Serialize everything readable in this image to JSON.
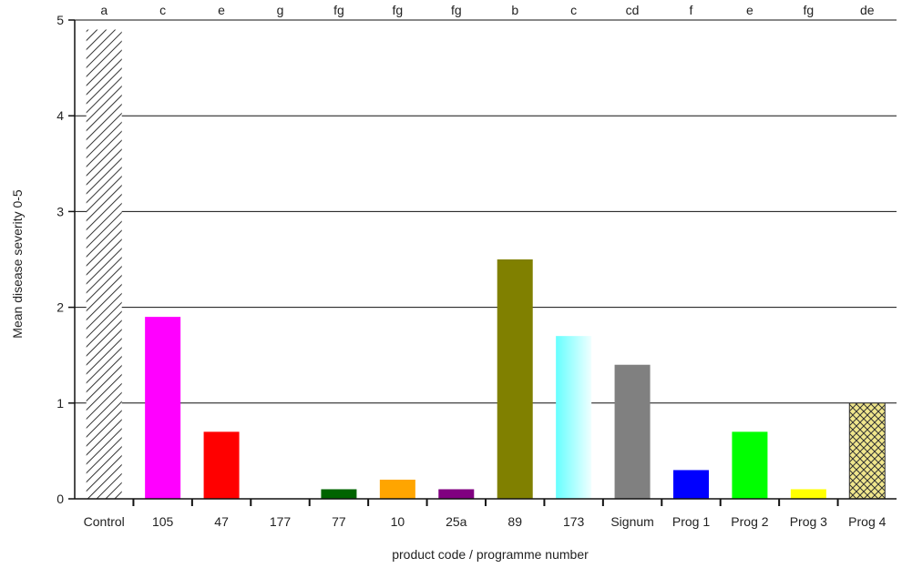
{
  "chart_data": {
    "type": "bar",
    "xlabel": "product code / programme number",
    "ylabel": "Mean disease severity 0-5",
    "ylim": [
      0,
      5
    ],
    "yticks": [
      0,
      1,
      2,
      3,
      4,
      5
    ],
    "grid": true,
    "categories": [
      "Control",
      "105",
      "47",
      "177",
      "77",
      "10",
      "25a",
      "89",
      "173",
      "Signum",
      "Prog 1",
      "Prog 2",
      "Prog 3",
      "Prog 4"
    ],
    "values": [
      4.9,
      1.9,
      0.7,
      0.0,
      0.1,
      0.2,
      0.1,
      2.5,
      1.7,
      1.4,
      0.3,
      0.7,
      0.1,
      1.0
    ],
    "significance_letters": [
      "a",
      "c",
      "e",
      "g",
      "fg",
      "fg",
      "fg",
      "b",
      "c",
      "cd",
      "f",
      "e",
      "fg",
      "de"
    ],
    "bar_colors": [
      "#ffffff",
      "#ff00ff",
      "#ff0000",
      "#006400",
      "#006400",
      "#ffa500",
      "#800080",
      "#808000",
      "#aaffff",
      "#808080",
      "#0000ff",
      "#00ff00",
      "#ffff00",
      "#f0e68c"
    ],
    "bar_patterns": [
      "diagonal-hatch",
      "solid",
      "solid",
      "solid",
      "solid",
      "solid",
      "solid",
      "solid",
      "gradient",
      "solid",
      "solid",
      "solid",
      "solid",
      "crosshatch"
    ]
  }
}
